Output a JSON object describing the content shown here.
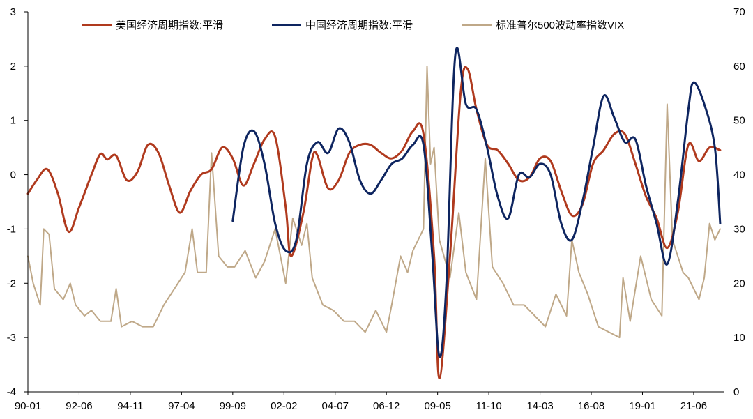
{
  "chart_data": {
    "type": "line",
    "title": "",
    "x_tick_labels": [
      "90-01",
      "92-06",
      "94-11",
      "97-04",
      "99-09",
      "02-02",
      "04-07",
      "06-12",
      "09-05",
      "11-10",
      "14-03",
      "16-08",
      "19-01",
      "21-06"
    ],
    "y_left": {
      "ylim": [
        -4,
        3
      ],
      "ticks": [
        -4,
        -3,
        -2,
        -1,
        0,
        1,
        2,
        3
      ]
    },
    "y_right": {
      "ylim": [
        0,
        70
      ],
      "ticks": [
        0,
        10,
        20,
        30,
        40,
        50,
        60,
        70
      ]
    },
    "legend_position": "top",
    "series": [
      {
        "name": "美国经济周期指数:平滑",
        "axis": "left",
        "color": "#B03A1E",
        "points": [
          [
            "1990-01",
            -0.35
          ],
          [
            "1990-06",
            -0.1
          ],
          [
            "1990-12",
            0.1
          ],
          [
            "1991-06",
            -0.35
          ],
          [
            "1991-12",
            -1.05
          ],
          [
            "1992-06",
            -0.6
          ],
          [
            "1993-01",
            0.0
          ],
          [
            "1993-06",
            0.38
          ],
          [
            "1993-10",
            0.28
          ],
          [
            "1994-03",
            0.35
          ],
          [
            "1994-09",
            -0.1
          ],
          [
            "1995-03",
            0.05
          ],
          [
            "1995-09",
            0.55
          ],
          [
            "1996-03",
            0.4
          ],
          [
            "1996-09",
            -0.2
          ],
          [
            "1997-03",
            -0.7
          ],
          [
            "1997-09",
            -0.3
          ],
          [
            "1998-03",
            0.0
          ],
          [
            "1998-09",
            0.1
          ],
          [
            "1999-03",
            0.5
          ],
          [
            "1999-09",
            0.3
          ],
          [
            "2000-03",
            -0.2
          ],
          [
            "2000-09",
            0.2
          ],
          [
            "2001-03",
            0.65
          ],
          [
            "2001-09",
            0.7
          ],
          [
            "2002-03",
            -0.6
          ],
          [
            "2002-06",
            -1.5
          ],
          [
            "2003-01",
            -0.7
          ],
          [
            "2003-06",
            0.3
          ],
          [
            "2003-09",
            0.35
          ],
          [
            "2004-03",
            -0.25
          ],
          [
            "2004-09",
            -0.1
          ],
          [
            "2005-03",
            0.4
          ],
          [
            "2005-09",
            0.55
          ],
          [
            "2006-03",
            0.55
          ],
          [
            "2006-09",
            0.4
          ],
          [
            "2007-03",
            0.3
          ],
          [
            "2007-09",
            0.45
          ],
          [
            "2008-03",
            0.8
          ],
          [
            "2008-09",
            0.75
          ],
          [
            "2009-03",
            -1.5
          ],
          [
            "2009-06",
            -3.75
          ],
          [
            "2009-12",
            -1.5
          ],
          [
            "2010-06",
            1.5
          ],
          [
            "2010-10",
            1.95
          ],
          [
            "2011-03",
            1.2
          ],
          [
            "2011-09",
            0.55
          ],
          [
            "2012-03",
            0.45
          ],
          [
            "2012-09",
            0.2
          ],
          [
            "2013-03",
            -0.1
          ],
          [
            "2013-09",
            -0.05
          ],
          [
            "2014-03",
            0.3
          ],
          [
            "2014-09",
            0.25
          ],
          [
            "2015-03",
            -0.3
          ],
          [
            "2015-09",
            -0.75
          ],
          [
            "2016-03",
            -0.55
          ],
          [
            "2016-09",
            0.2
          ],
          [
            "2017-03",
            0.45
          ],
          [
            "2017-09",
            0.75
          ],
          [
            "2018-03",
            0.75
          ],
          [
            "2018-09",
            0.2
          ],
          [
            "2019-03",
            -0.4
          ],
          [
            "2019-09",
            -0.8
          ],
          [
            "2020-03",
            -1.35
          ],
          [
            "2020-09",
            -0.7
          ],
          [
            "2021-03",
            0.55
          ],
          [
            "2021-09",
            0.25
          ],
          [
            "2022-03",
            0.5
          ],
          [
            "2022-09",
            0.45
          ]
        ]
      },
      {
        "name": "中国经济周期指数:平滑",
        "axis": "left",
        "color": "#0E2560",
        "points": [
          [
            "1999-09",
            -0.85
          ],
          [
            "2000-03",
            0.5
          ],
          [
            "2000-09",
            0.8
          ],
          [
            "2001-03",
            0.2
          ],
          [
            "2001-09",
            -0.9
          ],
          [
            "2002-03",
            -1.4
          ],
          [
            "2002-09",
            -1.2
          ],
          [
            "2003-03",
            0.2
          ],
          [
            "2003-09",
            0.6
          ],
          [
            "2004-03",
            0.4
          ],
          [
            "2004-09",
            0.85
          ],
          [
            "2005-03",
            0.6
          ],
          [
            "2005-09",
            -0.1
          ],
          [
            "2006-03",
            -0.35
          ],
          [
            "2006-09",
            -0.1
          ],
          [
            "2007-03",
            0.2
          ],
          [
            "2007-09",
            0.3
          ],
          [
            "2008-03",
            0.55
          ],
          [
            "2008-09",
            0.55
          ],
          [
            "2009-02",
            -1.5
          ],
          [
            "2009-06",
            -3.35
          ],
          [
            "2009-10",
            -2.0
          ],
          [
            "2010-03",
            2.2
          ],
          [
            "2010-09",
            1.3
          ],
          [
            "2011-03",
            1.2
          ],
          [
            "2011-09",
            0.5
          ],
          [
            "2012-03",
            -0.4
          ],
          [
            "2012-09",
            -0.8
          ],
          [
            "2013-03",
            0.0
          ],
          [
            "2013-09",
            -0.05
          ],
          [
            "2014-03",
            0.2
          ],
          [
            "2014-09",
            0.0
          ],
          [
            "2015-03",
            -0.9
          ],
          [
            "2015-09",
            -1.2
          ],
          [
            "2016-03",
            -0.5
          ],
          [
            "2016-09",
            0.5
          ],
          [
            "2017-03",
            1.45
          ],
          [
            "2017-09",
            1.05
          ],
          [
            "2018-03",
            0.6
          ],
          [
            "2018-09",
            0.65
          ],
          [
            "2019-03",
            -0.2
          ],
          [
            "2019-09",
            -0.9
          ],
          [
            "2020-03",
            -1.65
          ],
          [
            "2020-09",
            -0.5
          ],
          [
            "2021-03",
            1.2
          ],
          [
            "2021-06",
            1.7
          ],
          [
            "2021-12",
            1.3
          ],
          [
            "2022-06",
            0.5
          ],
          [
            "2022-09",
            -0.9
          ]
        ]
      },
      {
        "name": "标准普尔500波动率指数VIX",
        "axis": "right",
        "color": "#BFA888",
        "points": [
          [
            "1990-01",
            25
          ],
          [
            "1990-04",
            20
          ],
          [
            "1990-08",
            16
          ],
          [
            "1990-10",
            30
          ],
          [
            "1991-01",
            29
          ],
          [
            "1991-04",
            19
          ],
          [
            "1991-09",
            17
          ],
          [
            "1992-01",
            20
          ],
          [
            "1992-04",
            16
          ],
          [
            "1992-09",
            14
          ],
          [
            "1993-01",
            15
          ],
          [
            "1993-06",
            13
          ],
          [
            "1993-12",
            13
          ],
          [
            "1994-03",
            19
          ],
          [
            "1994-06",
            12
          ],
          [
            "1994-12",
            13
          ],
          [
            "1995-06",
            12
          ],
          [
            "1995-12",
            12
          ],
          [
            "1996-06",
            16
          ],
          [
            "1996-12",
            19
          ],
          [
            "1997-06",
            22
          ],
          [
            "1997-10",
            30
          ],
          [
            "1998-01",
            22
          ],
          [
            "1998-06",
            22
          ],
          [
            "1998-09",
            44
          ],
          [
            "1999-01",
            25
          ],
          [
            "1999-06",
            23
          ],
          [
            "1999-10",
            23
          ],
          [
            "2000-04",
            26
          ],
          [
            "2000-10",
            21
          ],
          [
            "2001-03",
            24
          ],
          [
            "2001-09",
            30
          ],
          [
            "2002-03",
            20
          ],
          [
            "2002-07",
            32
          ],
          [
            "2002-12",
            27
          ],
          [
            "2003-03",
            31
          ],
          [
            "2003-06",
            21
          ],
          [
            "2003-12",
            16
          ],
          [
            "2004-06",
            15
          ],
          [
            "2004-12",
            13
          ],
          [
            "2005-06",
            13
          ],
          [
            "2005-12",
            11
          ],
          [
            "2006-06",
            15
          ],
          [
            "2006-12",
            11
          ],
          [
            "2007-03",
            16
          ],
          [
            "2007-08",
            25
          ],
          [
            "2007-12",
            22
          ],
          [
            "2008-03",
            26
          ],
          [
            "2008-09",
            30
          ],
          [
            "2008-11",
            60
          ],
          [
            "2009-01",
            42
          ],
          [
            "2009-03",
            45
          ],
          [
            "2009-06",
            28
          ],
          [
            "2009-12",
            21
          ],
          [
            "2010-05",
            33
          ],
          [
            "2010-09",
            22
          ],
          [
            "2011-03",
            17
          ],
          [
            "2011-08",
            43
          ],
          [
            "2011-12",
            23
          ],
          [
            "2012-06",
            20
          ],
          [
            "2012-12",
            16
          ],
          [
            "2013-06",
            16
          ],
          [
            "2013-12",
            14
          ],
          [
            "2014-06",
            12
          ],
          [
            "2014-12",
            18
          ],
          [
            "2015-06",
            14
          ],
          [
            "2015-09",
            28
          ],
          [
            "2016-01",
            22
          ],
          [
            "2016-06",
            18
          ],
          [
            "2016-12",
            12
          ],
          [
            "2017-06",
            11
          ],
          [
            "2017-12",
            10
          ],
          [
            "2018-02",
            21
          ],
          [
            "2018-06",
            13
          ],
          [
            "2018-12",
            25
          ],
          [
            "2019-06",
            17
          ],
          [
            "2019-12",
            14
          ],
          [
            "2020-03",
            53
          ],
          [
            "2020-06",
            28
          ],
          [
            "2020-12",
            22
          ],
          [
            "2021-03",
            21
          ],
          [
            "2021-09",
            17
          ],
          [
            "2021-12",
            21
          ],
          [
            "2022-03",
            31
          ],
          [
            "2022-06",
            28
          ],
          [
            "2022-09",
            30
          ]
        ]
      }
    ]
  }
}
